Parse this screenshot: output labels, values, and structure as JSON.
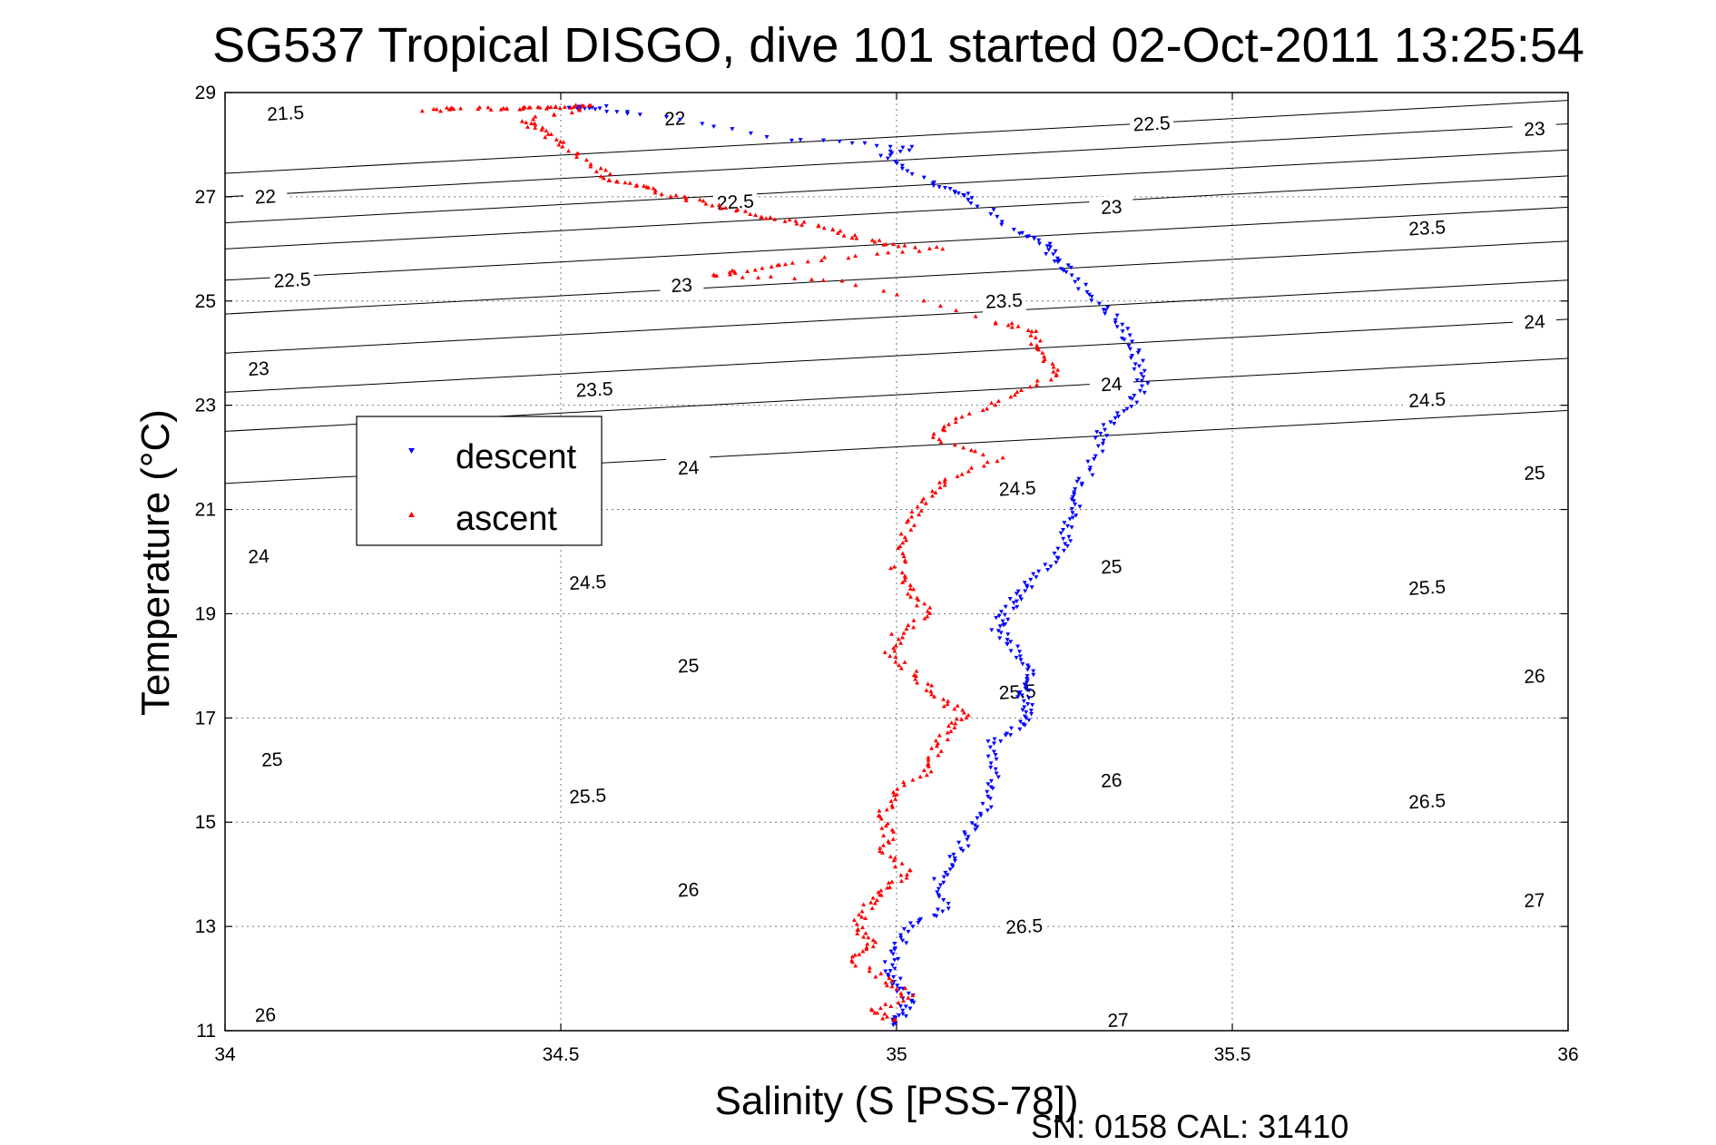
{
  "chart_data": {
    "type": "scatter",
    "title": "SG537 Tropical DISGO, dive 101 started 02-Oct-2011 13:25:54",
    "xlabel": "Salinity (S [PSS-78])",
    "ylabel": "Temperature (°C)",
    "xlim": [
      34,
      36
    ],
    "ylim": [
      11,
      29
    ],
    "xticks": [
      "34",
      "34.5",
      "35",
      "35.5",
      "36"
    ],
    "yticks": [
      "11",
      "13",
      "15",
      "17",
      "19",
      "21",
      "23",
      "25",
      "27",
      "29"
    ],
    "grid": true,
    "legend_position": "upper-left",
    "footer": "SN: 0158  CAL: 31410",
    "isopycnals": {
      "sigma_at_s34": [
        21.5,
        22.5,
        23.25,
        24.0,
        24.75,
        25.4,
        26.0,
        26.5,
        27.0,
        27.45
      ],
      "slope_per_psu": 0.7,
      "labels": [
        {
          "x": 34.09,
          "t": 28.6,
          "text": "21.5"
        },
        {
          "x": 34.67,
          "t": 28.5,
          "text": "22"
        },
        {
          "x": 34.06,
          "t": 27.0,
          "text": "22"
        },
        {
          "x": 34.76,
          "t": 26.9,
          "text": "22.5"
        },
        {
          "x": 34.1,
          "t": 25.4,
          "text": "22.5"
        },
        {
          "x": 34.68,
          "t": 25.3,
          "text": "23"
        },
        {
          "x": 34.05,
          "t": 23.7,
          "text": "23"
        },
        {
          "x": 34.55,
          "t": 23.3,
          "text": "23.5"
        },
        {
          "x": 34.05,
          "t": 20.1,
          "text": "24"
        },
        {
          "x": 34.69,
          "t": 21.8,
          "text": "24"
        },
        {
          "x": 34.54,
          "t": 19.6,
          "text": "24.5"
        },
        {
          "x": 34.07,
          "t": 16.2,
          "text": "25"
        },
        {
          "x": 34.69,
          "t": 18.0,
          "text": "25"
        },
        {
          "x": 34.54,
          "t": 15.5,
          "text": "25.5"
        },
        {
          "x": 34.06,
          "t": 11.3,
          "text": "26"
        },
        {
          "x": 34.69,
          "t": 13.7,
          "text": "26"
        },
        {
          "x": 35.38,
          "t": 28.4,
          "text": "22.5"
        },
        {
          "x": 35.32,
          "t": 26.8,
          "text": "23"
        },
        {
          "x": 35.16,
          "t": 25.0,
          "text": "23.5"
        },
        {
          "x": 35.32,
          "t": 23.4,
          "text": "24"
        },
        {
          "x": 35.18,
          "t": 21.4,
          "text": "24.5"
        },
        {
          "x": 35.32,
          "t": 19.9,
          "text": "25"
        },
        {
          "x": 35.18,
          "t": 17.5,
          "text": "25.5"
        },
        {
          "x": 35.32,
          "t": 15.8,
          "text": "26"
        },
        {
          "x": 35.19,
          "t": 13.0,
          "text": "26.5"
        },
        {
          "x": 35.33,
          "t": 11.2,
          "text": "27"
        },
        {
          "x": 35.95,
          "t": 28.3,
          "text": "23"
        },
        {
          "x": 35.79,
          "t": 26.4,
          "text": "23.5"
        },
        {
          "x": 35.95,
          "t": 24.6,
          "text": "24"
        },
        {
          "x": 35.79,
          "t": 23.1,
          "text": "24.5"
        },
        {
          "x": 35.95,
          "t": 21.7,
          "text": "25"
        },
        {
          "x": 35.79,
          "t": 19.5,
          "text": "25.5"
        },
        {
          "x": 35.95,
          "t": 17.8,
          "text": "26"
        },
        {
          "x": 35.79,
          "t": 15.4,
          "text": "26.5"
        },
        {
          "x": 35.95,
          "t": 13.5,
          "text": "27"
        }
      ]
    },
    "series": [
      {
        "name": "descent",
        "color": "#0000ff",
        "marker": "triangle-down",
        "points": [
          [
            34.56,
            28.72
          ],
          [
            34.52,
            28.7
          ],
          [
            34.62,
            28.6
          ],
          [
            34.84,
            28.1
          ],
          [
            35.02,
            27.95
          ],
          [
            34.98,
            27.75
          ],
          [
            35.05,
            27.3
          ],
          [
            35.09,
            27.1
          ],
          [
            35.12,
            26.9
          ],
          [
            35.18,
            26.3
          ],
          [
            35.22,
            26.1
          ],
          [
            35.24,
            25.8
          ],
          [
            35.26,
            25.5
          ],
          [
            35.3,
            25.0
          ],
          [
            35.33,
            24.6
          ],
          [
            35.35,
            24.2
          ],
          [
            35.36,
            23.8
          ],
          [
            35.37,
            23.4
          ],
          [
            35.35,
            23.0
          ],
          [
            35.31,
            22.6
          ],
          [
            35.3,
            22.2
          ],
          [
            35.28,
            21.6
          ],
          [
            35.27,
            21.2
          ],
          [
            35.26,
            20.8
          ],
          [
            35.25,
            20.4
          ],
          [
            35.23,
            20.0
          ],
          [
            35.2,
            19.6
          ],
          [
            35.18,
            19.3
          ],
          [
            35.16,
            19.0
          ],
          [
            35.15,
            18.7
          ],
          [
            35.17,
            18.4
          ],
          [
            35.19,
            18.0
          ],
          [
            35.2,
            17.7
          ],
          [
            35.19,
            17.4
          ],
          [
            35.2,
            17.1
          ],
          [
            35.18,
            16.8
          ],
          [
            35.14,
            16.5
          ],
          [
            35.15,
            16.0
          ],
          [
            35.14,
            15.5
          ],
          [
            35.12,
            15.0
          ],
          [
            35.1,
            14.6
          ],
          [
            35.08,
            14.2
          ],
          [
            35.06,
            13.8
          ],
          [
            35.07,
            13.3
          ],
          [
            35.02,
            13.0
          ],
          [
            35.0,
            12.6
          ],
          [
            34.99,
            12.2
          ],
          [
            35.0,
            11.9
          ],
          [
            35.02,
            11.6
          ],
          [
            35.01,
            11.3
          ],
          [
            34.99,
            11.1
          ]
        ]
      },
      {
        "name": "ascent",
        "color": "#ff0000",
        "marker": "triangle-up",
        "points": [
          [
            34.3,
            28.65
          ],
          [
            34.35,
            28.7
          ],
          [
            34.42,
            28.68
          ],
          [
            34.46,
            28.7
          ],
          [
            34.5,
            28.72
          ],
          [
            34.55,
            28.75
          ],
          [
            34.44,
            28.45
          ],
          [
            34.47,
            28.3
          ],
          [
            34.5,
            28.0
          ],
          [
            34.55,
            27.6
          ],
          [
            34.58,
            27.3
          ],
          [
            34.62,
            27.2
          ],
          [
            34.68,
            27.0
          ],
          [
            34.74,
            26.8
          ],
          [
            34.8,
            26.6
          ],
          [
            34.86,
            26.5
          ],
          [
            34.92,
            26.3
          ],
          [
            34.98,
            26.1
          ],
          [
            35.06,
            26.0
          ],
          [
            34.88,
            25.8
          ],
          [
            34.78,
            25.6
          ],
          [
            34.72,
            25.5
          ],
          [
            34.92,
            25.4
          ],
          [
            35.15,
            24.6
          ],
          [
            35.2,
            24.4
          ],
          [
            35.22,
            24.0
          ],
          [
            35.24,
            23.6
          ],
          [
            35.18,
            23.2
          ],
          [
            35.1,
            22.8
          ],
          [
            35.05,
            22.4
          ],
          [
            35.15,
            22.0
          ],
          [
            35.08,
            21.6
          ],
          [
            35.05,
            21.2
          ],
          [
            35.02,
            20.8
          ],
          [
            35.01,
            20.3
          ],
          [
            35.0,
            19.8
          ],
          [
            35.02,
            19.4
          ],
          [
            35.05,
            19.0
          ],
          [
            35.0,
            18.6
          ],
          [
            34.99,
            18.2
          ],
          [
            35.03,
            17.8
          ],
          [
            35.06,
            17.4
          ],
          [
            35.1,
            17.1
          ],
          [
            35.08,
            16.8
          ],
          [
            35.06,
            16.4
          ],
          [
            35.05,
            16.0
          ],
          [
            35.0,
            15.6
          ],
          [
            34.98,
            15.2
          ],
          [
            34.99,
            14.8
          ],
          [
            34.98,
            14.4
          ],
          [
            35.02,
            14.0
          ],
          [
            34.98,
            13.7
          ],
          [
            34.96,
            13.4
          ],
          [
            34.94,
            13.0
          ],
          [
            34.97,
            12.7
          ],
          [
            34.93,
            12.4
          ],
          [
            34.98,
            12.0
          ],
          [
            35.02,
            11.7
          ],
          [
            34.97,
            11.4
          ],
          [
            34.99,
            11.2
          ]
        ]
      }
    ]
  }
}
